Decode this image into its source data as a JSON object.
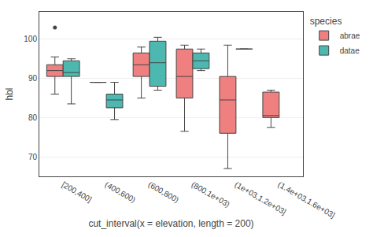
{
  "chart_data": {
    "type": "box",
    "xlabel": "cut_interval(x = elevation, length = 200)",
    "ylabel": "hbl",
    "legend_title": "species",
    "categories": [
      "[200,400]",
      "(400,600)",
      "(600,800)",
      "(800,1e+03)",
      "(1e+03,1.2e+03]",
      "(1.4e+03,1.6e+03]"
    ],
    "series": [
      {
        "name": "abrae",
        "color": "#F08080",
        "boxes": [
          {
            "q1": 90.5,
            "median": 92.0,
            "q3": 93.5,
            "whislo": 86.0,
            "whishi": 95.5,
            "fliers": [
              103
            ]
          },
          {
            "q1": 89.0,
            "median": 89.0,
            "q3": 89.0,
            "whislo": 89.0,
            "whishi": 89.0,
            "fliers": []
          },
          {
            "q1": 90.5,
            "median": 93.5,
            "q3": 96.5,
            "whislo": 85.0,
            "whishi": 98.0,
            "fliers": []
          },
          {
            "q1": 85.0,
            "median": 90.5,
            "q3": 97.5,
            "whislo": 76.5,
            "whishi": 98.5,
            "fliers": []
          },
          {
            "q1": 76.0,
            "median": 84.5,
            "q3": 90.5,
            "whislo": 67.0,
            "whishi": 98.5,
            "fliers": []
          },
          {
            "q1": 80.0,
            "median": 80.5,
            "q3": 86.5,
            "whislo": 77.5,
            "whishi": 87.0,
            "fliers": []
          }
        ]
      },
      {
        "name": "datae",
        "color": "#4DB8B0",
        "boxes": [
          {
            "q1": 90.5,
            "median": 91.5,
            "q3": 94.5,
            "whislo": 83.5,
            "whishi": 95.0,
            "fliers": []
          },
          {
            "q1": 82.5,
            "median": 84.5,
            "q3": 86.0,
            "whislo": 79.5,
            "whishi": 89.0,
            "fliers": []
          },
          {
            "q1": 88.0,
            "median": 94.0,
            "q3": 99.5,
            "whislo": 87.0,
            "whishi": 100.5,
            "fliers": []
          },
          {
            "q1": 92.5,
            "median": 94.5,
            "q3": 96.5,
            "whislo": 92.0,
            "whishi": 97.5,
            "fliers": []
          },
          {
            "q1": 97.5,
            "median": 97.5,
            "q3": 97.5,
            "whislo": 97.5,
            "whishi": 97.5,
            "fliers": []
          },
          null
        ]
      }
    ],
    "ylim": [
      65,
      107
    ],
    "yticks": [
      70,
      80,
      90,
      100
    ],
    "grid": true,
    "legend": "right"
  }
}
